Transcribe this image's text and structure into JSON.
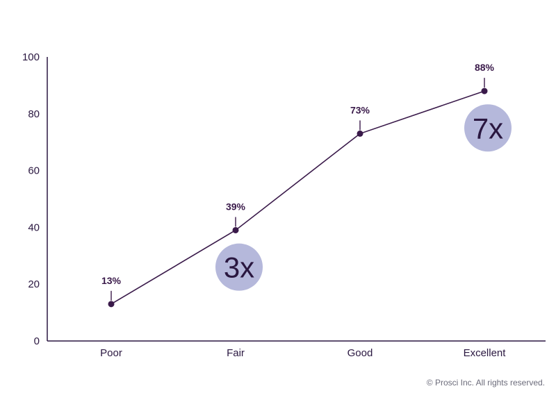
{
  "chart_data": {
    "type": "line",
    "categories": [
      "Poor",
      "Fair",
      "Good",
      "Excellent"
    ],
    "values": [
      13,
      39,
      73,
      88
    ],
    "data_labels": [
      "13%",
      "39%",
      "73%",
      "88%"
    ],
    "ylim": [
      0,
      100
    ],
    "yticks": [
      0,
      20,
      40,
      60,
      80,
      100
    ],
    "grid": false,
    "title": "",
    "xlabel": "",
    "ylabel": "",
    "annotations": [
      {
        "text": "3x",
        "category_index": 1,
        "y": 26
      },
      {
        "text": "7x",
        "category_index": 3,
        "y": 75
      }
    ]
  },
  "colors": {
    "line": "#3a1a4a",
    "marker": "#3a1a4a",
    "axis": "#2a1740",
    "bubble": "#b5b8db",
    "text": "#2a1740"
  },
  "footer": {
    "copyright": "© Prosci Inc. All rights reserved."
  }
}
